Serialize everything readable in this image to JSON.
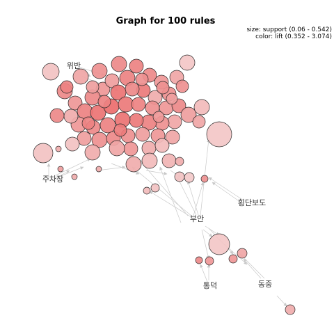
{
  "title": "Graph for 100 rules",
  "legend": {
    "size": "size: support (0.06 - 0.542)",
    "color": "color: lift (0.352 - 3.074)"
  },
  "item_labels": [
    "위반",
    "주차장",
    "부안",
    "횡단보도",
    "통덕",
    "동중"
  ]
}
